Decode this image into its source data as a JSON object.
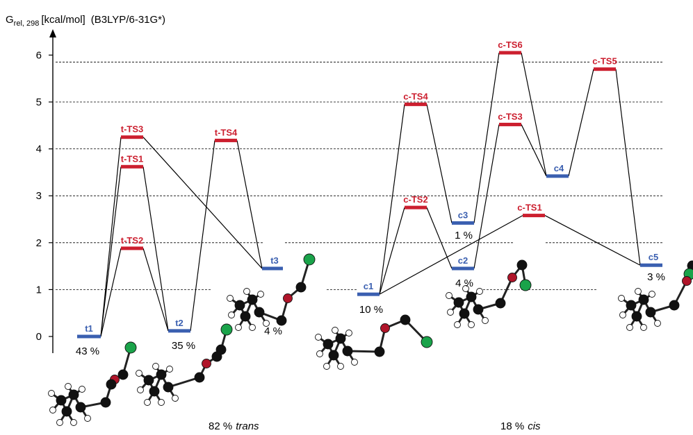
{
  "title": {
    "g_main": "G",
    "g_sub": "rel, 298",
    "units": "[kcal/mol]",
    "method": "(B3LYP/6-31G*)"
  },
  "axis": {
    "ticks": [
      "0",
      "1",
      "2",
      "3",
      "4",
      "5",
      "6"
    ],
    "tick_values": [
      0,
      1,
      2,
      3,
      4,
      5,
      6
    ],
    "grid_values": [
      1,
      2,
      3,
      4,
      5,
      5.85
    ]
  },
  "colors": {
    "minimum": "#3a5fb0",
    "transition_state": "#cc1f2f",
    "connector": "#000000",
    "grid": "#000000",
    "atom_carbon": "#111111",
    "atom_oxygen": "#b0152a",
    "atom_chlorine": "#1aa34a",
    "atom_hydrogen": "#ffffff"
  },
  "energy_levels": [
    {
      "id": "t1",
      "label": "t1",
      "type": "minimum",
      "energy": 0.0
    },
    {
      "id": "t-TS1",
      "label": "t-TS1",
      "type": "ts",
      "energy": 3.62
    },
    {
      "id": "t-TS2",
      "label": "t-TS2",
      "type": "ts",
      "energy": 1.88
    },
    {
      "id": "t-TS3",
      "label": "t-TS3",
      "type": "ts",
      "energy": 4.25
    },
    {
      "id": "t2",
      "label": "t2",
      "type": "minimum",
      "energy": 0.12
    },
    {
      "id": "t-TS4",
      "label": "t-TS4",
      "type": "ts",
      "energy": 4.18
    },
    {
      "id": "t3",
      "label": "t3",
      "type": "minimum",
      "energy": 1.45
    },
    {
      "id": "c1",
      "label": "c1",
      "type": "minimum",
      "energy": 0.9
    },
    {
      "id": "c-TS4",
      "label": "c-TS4",
      "type": "ts",
      "energy": 4.95
    },
    {
      "id": "c-TS2",
      "label": "c-TS2",
      "type": "ts",
      "energy": 2.75
    },
    {
      "id": "c3",
      "label": "c3",
      "type": "minimum",
      "energy": 2.42
    },
    {
      "id": "c2",
      "label": "c2",
      "type": "minimum",
      "energy": 1.45
    },
    {
      "id": "c-TS6",
      "label": "c-TS6",
      "type": "ts",
      "energy": 6.05
    },
    {
      "id": "c-TS3",
      "label": "c-TS3",
      "type": "ts",
      "energy": 4.52
    },
    {
      "id": "c-TS1",
      "label": "c-TS1",
      "type": "ts",
      "energy": 2.58
    },
    {
      "id": "c4",
      "label": "c4",
      "type": "minimum",
      "energy": 3.42
    },
    {
      "id": "c-TS5",
      "label": "c-TS5",
      "type": "ts",
      "energy": 5.7
    },
    {
      "id": "c5",
      "label": "c5",
      "type": "minimum",
      "energy": 1.52
    }
  ],
  "connections": [
    [
      "t1",
      "t-TS1"
    ],
    [
      "t1",
      "t-TS2"
    ],
    [
      "t1",
      "t-TS3"
    ],
    [
      "t-TS1",
      "t2"
    ],
    [
      "t-TS2",
      "t2"
    ],
    [
      "t-TS3",
      "t3"
    ],
    [
      "t2",
      "t-TS4"
    ],
    [
      "t-TS4",
      "t3"
    ],
    [
      "c1",
      "c-TS4"
    ],
    [
      "c1",
      "c-TS2"
    ],
    [
      "c1",
      "c-TS1"
    ],
    [
      "c-TS4",
      "c3"
    ],
    [
      "c-TS2",
      "c2"
    ],
    [
      "c3",
      "c-TS6"
    ],
    [
      "c2",
      "c-TS3"
    ],
    [
      "c-TS6",
      "c4"
    ],
    [
      "c-TS3",
      "c4"
    ],
    [
      "c4",
      "c-TS5"
    ],
    [
      "c-TS5",
      "c5"
    ],
    [
      "c-TS1",
      "c5"
    ]
  ],
  "populations": [
    {
      "id": "t1",
      "text": "43 %"
    },
    {
      "id": "t2",
      "text": "35 %"
    },
    {
      "id": "t3",
      "text": "4 %"
    },
    {
      "id": "c1",
      "text": "10 %"
    },
    {
      "id": "c3",
      "text": "1 %"
    },
    {
      "id": "c2",
      "text": "4 %"
    },
    {
      "id": "c5",
      "text": "3 %"
    }
  ],
  "footer": {
    "trans_pct": "82 %",
    "trans_word": "trans",
    "cis_pct": "18 %",
    "cis_word": "cis"
  },
  "molecules": [
    {
      "name": "molecule-t1"
    },
    {
      "name": "molecule-t2"
    },
    {
      "name": "molecule-t3"
    },
    {
      "name": "molecule-c1"
    },
    {
      "name": "molecule-c2"
    },
    {
      "name": "molecule-c5"
    }
  ]
}
